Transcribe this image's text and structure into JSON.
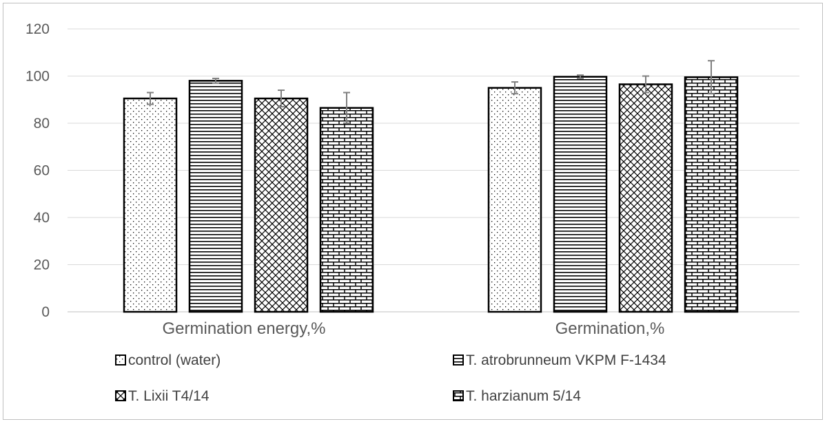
{
  "chart_data": {
    "type": "bar",
    "categories": [
      "Germination energy,%",
      "Germination,%"
    ],
    "series": [
      {
        "name": "control (water)",
        "values": [
          90.5,
          95
        ],
        "errors": [
          2.5,
          2.5
        ],
        "pattern": "dots"
      },
      {
        "name": "T. atrobrunneum  VKPM F-1434",
        "values": [
          98,
          99.7
        ],
        "errors": [
          1,
          0.7
        ],
        "pattern": "hlines"
      },
      {
        "name": "T. Lixii  T4/14",
        "values": [
          90.5,
          96.5
        ],
        "errors": [
          3.5,
          3.5
        ],
        "pattern": "diag"
      },
      {
        "name": "T.  harzianum 5/14",
        "values": [
          86.5,
          99.5
        ],
        "errors": [
          6.5,
          7
        ],
        "pattern": "brick"
      }
    ],
    "ylim": [
      0,
      120
    ],
    "yticks": [
      0,
      20,
      40,
      60,
      80,
      100,
      120
    ],
    "grid": true,
    "legend_position": "bottom",
    "title": "",
    "xlabel": "",
    "ylabel": ""
  }
}
